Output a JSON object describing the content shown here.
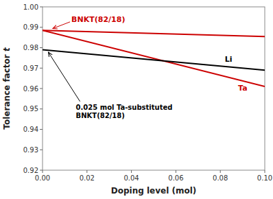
{
  "chart_data": {
    "type": "line",
    "x": [
      0.0,
      0.1
    ],
    "series": [
      {
        "name": "BNKT(82/18)",
        "color": "#cc0000",
        "values": [
          0.9885,
          0.9855
        ]
      },
      {
        "name": "Ta",
        "color": "#cc0000",
        "values": [
          0.9885,
          0.961
        ]
      },
      {
        "name": "Li",
        "color": "#000000",
        "values": [
          0.979,
          0.969
        ]
      }
    ],
    "annotations": [
      "0.025 mol Ta-substituted\nBNKT(82/18)"
    ],
    "x_label": "Doping level (mol)",
    "y_label": "Tolerance factor t",
    "xlim": [
      0.0,
      0.1
    ],
    "ylim": [
      0.92,
      1.0
    ],
    "xticks": [
      {
        "value": 0.0,
        "label": "0.00"
      },
      0.02,
      0.04,
      0.06,
      0.08,
      {
        "value": 0.1,
        "label": "0.10"
      }
    ],
    "yticks": [
      0.92,
      0.93,
      0.94,
      0.95,
      0.96,
      0.97,
      0.98,
      0.99,
      {
        "value": 1.0,
        "label": "1.00"
      }
    ],
    "grid": false
  }
}
